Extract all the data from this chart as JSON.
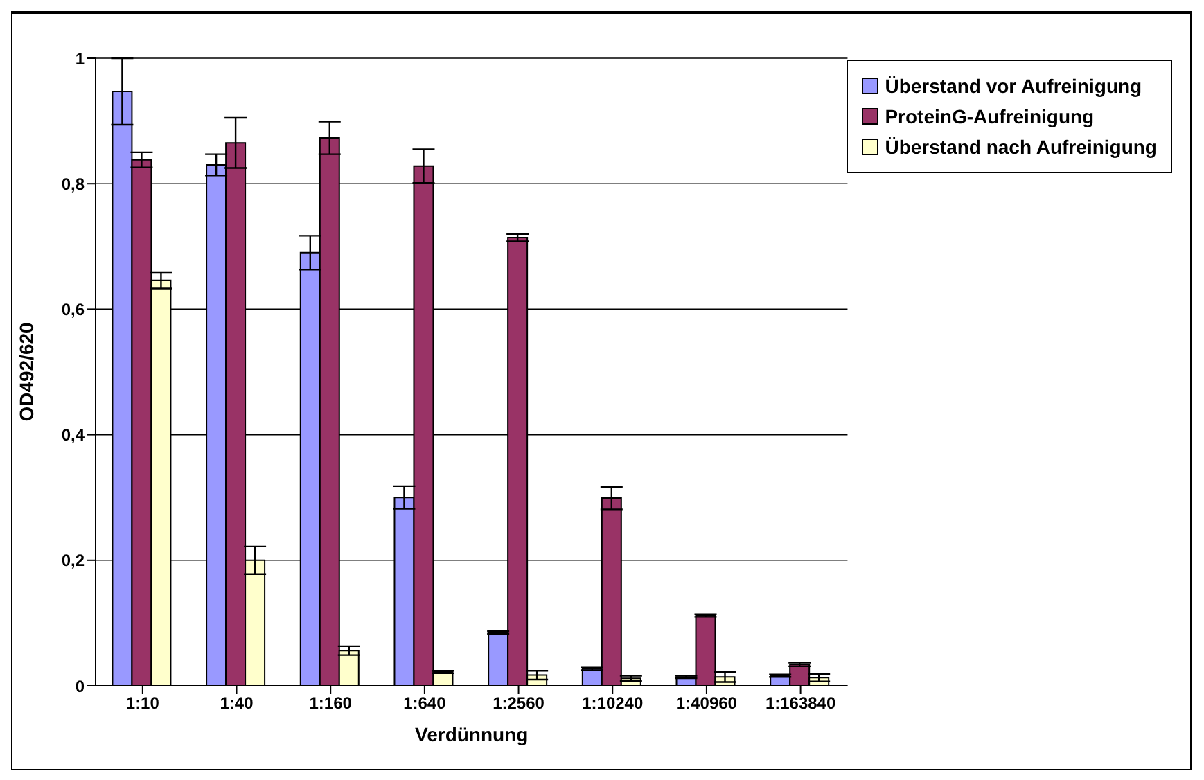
{
  "chart_data": {
    "type": "bar",
    "xlabel": "Verdünnung",
    "ylabel": "OD492/620",
    "categories": [
      "1:10",
      "1:40",
      "1:160",
      "1:640",
      "1:2560",
      "1:10240",
      "1:40960",
      "1:163840"
    ],
    "series": [
      {
        "name": "Überstand vor Aufreinigung",
        "color": "#9999ff",
        "values": [
          0.947,
          0.83,
          0.69,
          0.3,
          0.085,
          0.027,
          0.014,
          0.016
        ],
        "errors": [
          0.053,
          0.017,
          0.027,
          0.018,
          0.002,
          0.002,
          0.002,
          0.002
        ]
      },
      {
        "name": "ProteinG-Aufreinigung",
        "color": "#993366",
        "values": [
          0.838,
          0.865,
          0.873,
          0.828,
          0.714,
          0.299,
          0.112,
          0.034
        ],
        "errors": [
          0.012,
          0.04,
          0.026,
          0.027,
          0.006,
          0.018,
          0.002,
          0.003
        ]
      },
      {
        "name": "Überstand nach Aufreinigung",
        "color": "#ffffcc",
        "values": [
          0.646,
          0.2,
          0.056,
          0.022,
          0.017,
          0.012,
          0.014,
          0.013
        ],
        "errors": [
          0.013,
          0.022,
          0.007,
          0.002,
          0.007,
          0.004,
          0.008,
          0.006
        ]
      }
    ],
    "ylim": [
      0,
      1
    ],
    "yticks": [
      0,
      {
        "value": 0.2,
        "label": "0,2"
      },
      {
        "value": 0.4,
        "label": "0,4"
      },
      {
        "value": 0.6,
        "label": "0,6"
      },
      {
        "value": 0.8,
        "label": "0,8"
      },
      1
    ],
    "grid": "y",
    "legend": "top right"
  }
}
